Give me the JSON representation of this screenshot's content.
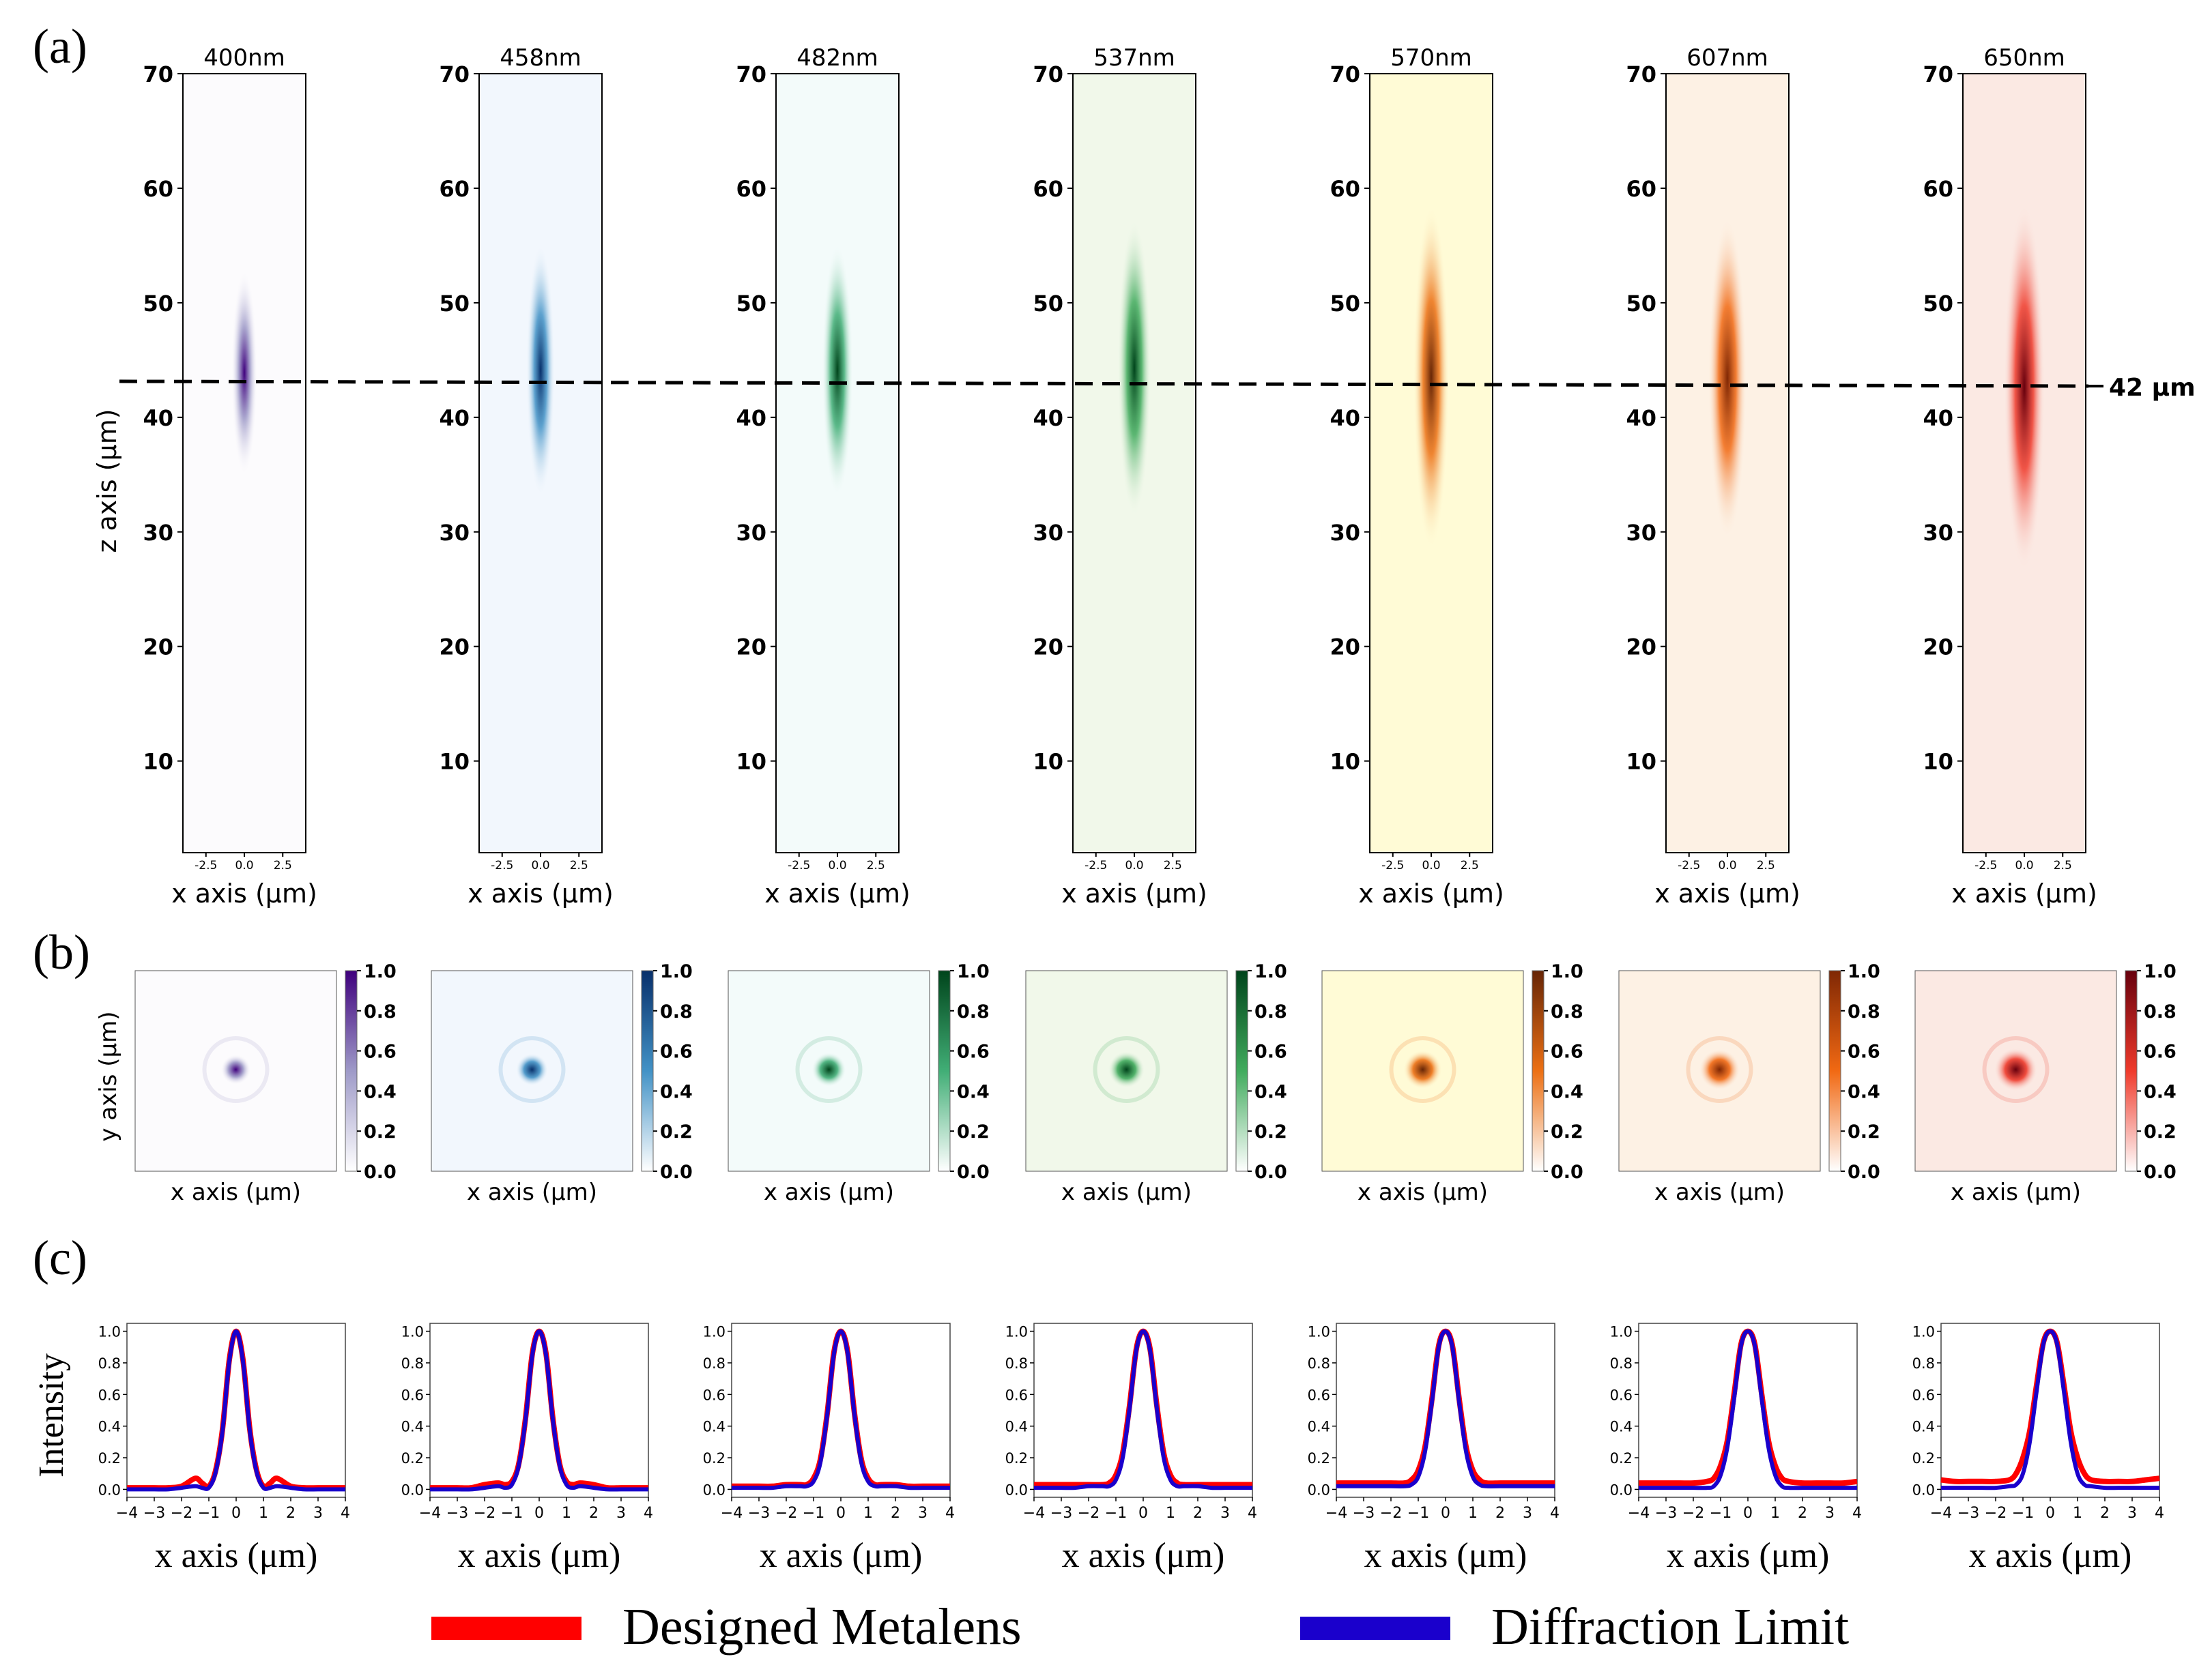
{
  "panel_labels": {
    "a": "(a)",
    "b": "(b)",
    "c": "(c)"
  },
  "focal_line_label": "42 μm",
  "legend": {
    "items": [
      {
        "label": "Designed Metalens",
        "color": "#ff0000"
      },
      {
        "label": "Diffraction Limit",
        "color": "#1a00cc"
      }
    ]
  },
  "chart_data": [
    {
      "panel": "a",
      "type": "heatmap",
      "description": "Longitudinal (x-z) intensity field for each wavelength",
      "titles": [
        "400nm",
        "458nm",
        "482nm",
        "537nm",
        "570nm",
        "607nm",
        "650nm"
      ],
      "colormaps": [
        "Purples",
        "Blues",
        "BuGn",
        "Greens",
        "YlOrBr",
        "Oranges",
        "Reds"
      ],
      "ylabel": "z axis (μm)",
      "xlabel": "x axis (μm)",
      "ylim": [
        2,
        70
      ],
      "xlim": [
        -4,
        4
      ],
      "yticks": [
        10,
        20,
        30,
        40,
        50,
        60,
        70
      ],
      "xticks": [
        "-2.5",
        "0.0",
        "2.5"
      ],
      "xtick_values": [
        -2.5,
        0.0,
        2.5
      ],
      "focal_z_um": 42,
      "focus_center_z": [
        43,
        43,
        43,
        43,
        42,
        42,
        41
      ],
      "focus_halflength_z": [
        9,
        11,
        11,
        13,
        15,
        14,
        16
      ]
    },
    {
      "panel": "b",
      "type": "heatmap",
      "description": "Transverse (x-y) focal spot intensity for each wavelength",
      "xlabel": "x axis (μm)",
      "ylabel": "y axis (μm)",
      "colorbar_ticks": [
        "0.0",
        "0.2",
        "0.4",
        "0.6",
        "0.8",
        "1.0"
      ],
      "colorbar_tick_values": [
        0.0,
        0.2,
        0.4,
        0.6,
        0.8,
        1.0
      ],
      "clim": [
        0,
        1
      ],
      "colormaps": [
        "Purples",
        "Blues",
        "BuGn",
        "Greens",
        "YlOrBr",
        "Oranges",
        "Reds"
      ]
    },
    {
      "panel": "c",
      "type": "line",
      "xlabel": "x axis (μm)",
      "ylabel": "Intensity",
      "xlim": [
        -4,
        4
      ],
      "ylim": [
        -0.05,
        1.05
      ],
      "xticks": [
        "−4",
        "−3",
        "−2",
        "−1",
        "0",
        "1",
        "2",
        "3",
        "4"
      ],
      "xtick_values": [
        -4,
        -3,
        -2,
        -1,
        0,
        1,
        2,
        3,
        4
      ],
      "yticks": [
        "0.0",
        "0.2",
        "0.4",
        "0.6",
        "0.8",
        "1.0"
      ],
      "ytick_values": [
        0.0,
        0.2,
        0.4,
        0.6,
        0.8,
        1.0
      ],
      "x": [
        -4,
        -3.5,
        -3,
        -2.5,
        -2,
        -1.5,
        -1.25,
        -1,
        -0.75,
        -0.5,
        -0.25,
        0,
        0.25,
        0.5,
        0.75,
        1,
        1.25,
        1.5,
        2,
        2.5,
        3,
        3.5,
        4
      ],
      "plots": [
        {
          "series": [
            {
              "name": "Designed Metalens",
              "values": [
                0.01,
                0.01,
                0.01,
                0.01,
                0.02,
                0.07,
                0.04,
                0.02,
                0.12,
                0.38,
                0.82,
                1.0,
                0.82,
                0.38,
                0.12,
                0.02,
                0.04,
                0.07,
                0.02,
                0.01,
                0.01,
                0.01,
                0.01
              ]
            },
            {
              "name": "Diffraction Limit",
              "values": [
                0.0,
                0.0,
                0.0,
                0.0,
                0.01,
                0.02,
                0.01,
                0.01,
                0.11,
                0.37,
                0.81,
                1.0,
                0.81,
                0.37,
                0.11,
                0.01,
                0.01,
                0.02,
                0.01,
                0.0,
                0.0,
                0.0,
                0.0
              ]
            }
          ]
        },
        {
          "series": [
            {
              "name": "Designed Metalens",
              "values": [
                0.01,
                0.01,
                0.01,
                0.01,
                0.03,
                0.04,
                0.03,
                0.05,
                0.16,
                0.45,
                0.86,
                1.0,
                0.86,
                0.45,
                0.16,
                0.05,
                0.03,
                0.04,
                0.03,
                0.01,
                0.01,
                0.01,
                0.01
              ]
            },
            {
              "name": "Diffraction Limit",
              "values": [
                0.0,
                0.0,
                0.0,
                0.0,
                0.01,
                0.02,
                0.01,
                0.03,
                0.15,
                0.44,
                0.85,
                1.0,
                0.85,
                0.44,
                0.15,
                0.03,
                0.01,
                0.02,
                0.01,
                0.0,
                0.0,
                0.0,
                0.0
              ]
            }
          ]
        },
        {
          "series": [
            {
              "name": "Designed Metalens",
              "values": [
                0.02,
                0.02,
                0.02,
                0.02,
                0.03,
                0.03,
                0.03,
                0.07,
                0.19,
                0.48,
                0.87,
                1.0,
                0.87,
                0.48,
                0.19,
                0.07,
                0.03,
                0.03,
                0.03,
                0.02,
                0.02,
                0.02,
                0.02
              ]
            },
            {
              "name": "Diffraction Limit",
              "values": [
                0.01,
                0.01,
                0.01,
                0.01,
                0.02,
                0.02,
                0.02,
                0.05,
                0.17,
                0.47,
                0.86,
                1.0,
                0.86,
                0.47,
                0.17,
                0.05,
                0.02,
                0.02,
                0.02,
                0.01,
                0.01,
                0.01,
                0.01
              ]
            }
          ]
        },
        {
          "series": [
            {
              "name": "Designed Metalens",
              "values": [
                0.03,
                0.03,
                0.03,
                0.03,
                0.03,
                0.03,
                0.04,
                0.09,
                0.23,
                0.53,
                0.89,
                1.0,
                0.89,
                0.53,
                0.23,
                0.09,
                0.04,
                0.03,
                0.03,
                0.03,
                0.03,
                0.03,
                0.03
              ]
            },
            {
              "name": "Diffraction Limit",
              "values": [
                0.01,
                0.01,
                0.01,
                0.01,
                0.02,
                0.02,
                0.02,
                0.06,
                0.2,
                0.51,
                0.88,
                1.0,
                0.88,
                0.51,
                0.2,
                0.06,
                0.02,
                0.02,
                0.02,
                0.01,
                0.01,
                0.01,
                0.01
              ]
            }
          ]
        },
        {
          "series": [
            {
              "name": "Designed Metalens",
              "values": [
                0.04,
                0.04,
                0.04,
                0.04,
                0.04,
                0.04,
                0.06,
                0.12,
                0.27,
                0.57,
                0.91,
                1.0,
                0.91,
                0.57,
                0.27,
                0.12,
                0.06,
                0.04,
                0.04,
                0.04,
                0.04,
                0.04,
                0.04
              ]
            },
            {
              "name": "Diffraction Limit",
              "values": [
                0.02,
                0.02,
                0.02,
                0.02,
                0.02,
                0.02,
                0.03,
                0.08,
                0.24,
                0.55,
                0.9,
                1.0,
                0.9,
                0.55,
                0.24,
                0.08,
                0.03,
                0.02,
                0.02,
                0.02,
                0.02,
                0.02,
                0.02
              ]
            }
          ]
        },
        {
          "series": [
            {
              "name": "Designed Metalens",
              "values": [
                0.04,
                0.04,
                0.04,
                0.04,
                0.04,
                0.05,
                0.07,
                0.15,
                0.31,
                0.61,
                0.92,
                1.0,
                0.92,
                0.61,
                0.31,
                0.15,
                0.07,
                0.05,
                0.04,
                0.04,
                0.04,
                0.04,
                0.05
              ]
            },
            {
              "name": "Diffraction Limit",
              "values": [
                0.01,
                0.01,
                0.01,
                0.01,
                0.01,
                0.01,
                0.02,
                0.09,
                0.27,
                0.58,
                0.91,
                1.0,
                0.91,
                0.58,
                0.27,
                0.09,
                0.02,
                0.01,
                0.01,
                0.01,
                0.01,
                0.01,
                0.01
              ]
            }
          ]
        },
        {
          "series": [
            {
              "name": "Designed Metalens",
              "values": [
                0.06,
                0.05,
                0.05,
                0.05,
                0.05,
                0.06,
                0.1,
                0.2,
                0.37,
                0.66,
                0.93,
                1.0,
                0.93,
                0.66,
                0.37,
                0.2,
                0.1,
                0.06,
                0.05,
                0.05,
                0.05,
                0.06,
                0.07
              ]
            },
            {
              "name": "Diffraction Limit",
              "values": [
                0.01,
                0.01,
                0.01,
                0.01,
                0.01,
                0.02,
                0.03,
                0.1,
                0.3,
                0.62,
                0.92,
                1.0,
                0.92,
                0.62,
                0.3,
                0.1,
                0.03,
                0.02,
                0.01,
                0.01,
                0.01,
                0.01,
                0.01
              ]
            }
          ]
        }
      ]
    }
  ]
}
